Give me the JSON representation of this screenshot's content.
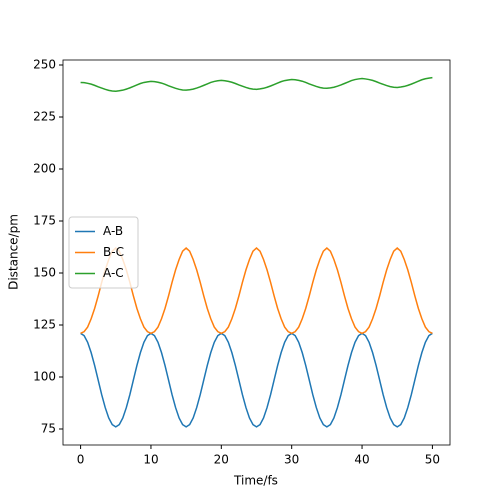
{
  "chart_data": {
    "type": "line",
    "xlabel": "Time/fs",
    "ylabel": "Distance/pm",
    "xlim": [
      -2.5,
      52.5
    ],
    "ylim": [
      67.3,
      252.4
    ],
    "xticks": [
      0,
      10,
      20,
      30,
      40,
      50
    ],
    "yticks": [
      75,
      100,
      125,
      150,
      175,
      200,
      225,
      250
    ],
    "legend": "center left",
    "x": [
      0,
      0.5,
      1,
      1.5,
      2,
      2.5,
      3,
      3.5,
      4,
      4.5,
      5,
      5.5,
      6,
      6.5,
      7,
      7.5,
      8,
      8.5,
      9,
      9.5,
      10,
      10.5,
      11,
      11.5,
      12,
      12.5,
      13,
      13.5,
      14,
      14.5,
      15,
      15.5,
      16,
      16.5,
      17,
      17.5,
      18,
      18.5,
      19,
      19.5,
      20,
      20.5,
      21,
      21.5,
      22,
      22.5,
      23,
      23.5,
      24,
      24.5,
      25,
      25.5,
      26,
      26.5,
      27,
      27.5,
      28,
      28.5,
      29,
      29.5,
      30,
      30.5,
      31,
      31.5,
      32,
      32.5,
      33,
      33.5,
      34,
      34.5,
      35,
      35.5,
      36,
      36.5,
      37,
      37.5,
      38,
      38.5,
      39,
      39.5,
      40,
      40.5,
      41,
      41.5,
      42,
      42.5,
      43,
      43.5,
      44,
      44.5,
      45,
      45.5,
      46,
      46.5,
      47,
      47.5,
      48,
      48.5,
      49,
      49.5,
      50
    ],
    "series": [
      {
        "name": "A-B",
        "color": "#1f77b4",
        "values": [
          121,
          119.9,
          116.7,
          111.7,
          105.5,
          98.5,
          91.5,
          85.3,
          80.3,
          77.1,
          76,
          77.1,
          80.3,
          85.3,
          91.5,
          98.5,
          105.5,
          111.7,
          116.7,
          119.9,
          121,
          119.9,
          116.7,
          111.7,
          105.5,
          98.5,
          91.5,
          85.3,
          80.3,
          77.1,
          76,
          77.1,
          80.3,
          85.3,
          91.5,
          98.5,
          105.5,
          111.7,
          116.7,
          119.9,
          121,
          119.9,
          116.7,
          111.7,
          105.5,
          98.5,
          91.5,
          85.3,
          80.3,
          77.1,
          76,
          77.1,
          80.3,
          85.3,
          91.5,
          98.5,
          105.5,
          111.7,
          116.7,
          119.9,
          121,
          119.9,
          116.7,
          111.7,
          105.5,
          98.5,
          91.5,
          85.3,
          80.3,
          77.1,
          76,
          77.1,
          80.3,
          85.3,
          91.5,
          98.5,
          105.5,
          111.7,
          116.7,
          119.9,
          121,
          119.9,
          116.7,
          111.7,
          105.5,
          98.5,
          91.5,
          85.3,
          80.3,
          77.1,
          76,
          77.1,
          80.3,
          85.3,
          91.5,
          98.5,
          105.5,
          111.7,
          116.7,
          119.9,
          121
        ]
      },
      {
        "name": "B-C",
        "color": "#ff7f0e",
        "values": [
          121,
          121.8,
          124,
          128,
          133,
          139,
          145.5,
          151.5,
          156.5,
          160.5,
          162,
          160.5,
          156.5,
          151.5,
          145.5,
          139,
          133,
          128,
          124,
          121.8,
          121,
          121.8,
          124,
          128,
          133,
          139,
          145.5,
          151.5,
          156.5,
          160.5,
          162,
          160.5,
          156.5,
          151.5,
          145.5,
          139,
          133,
          128,
          124,
          121.8,
          121,
          121.8,
          124,
          128,
          133,
          139,
          145.5,
          151.5,
          156.5,
          160.5,
          162,
          160.5,
          156.5,
          151.5,
          145.5,
          139,
          133,
          128,
          124,
          121.8,
          121,
          121.8,
          124,
          128,
          133,
          139,
          145.5,
          151.5,
          156.5,
          160.5,
          162,
          160.5,
          156.5,
          151.5,
          145.5,
          139,
          133,
          128,
          124,
          121.8,
          121,
          121.8,
          124,
          128,
          133,
          139,
          145.5,
          151.5,
          156.5,
          160.5,
          162,
          160.5,
          156.5,
          151.5,
          145.5,
          139,
          133,
          128,
          124,
          121.8,
          121
        ]
      },
      {
        "name": "A-C",
        "color": "#2ca02c",
        "values": [
          241.6,
          241.5,
          241.2,
          240.8,
          240.2,
          239.5,
          238.9,
          238.3,
          237.8,
          237.5,
          237.4,
          237.6,
          237.9,
          238.4,
          239.0,
          239.7,
          240.4,
          241.1,
          241.6,
          241.9,
          242.1,
          242.0,
          241.7,
          241.3,
          240.7,
          240.0,
          239.4,
          238.8,
          238.3,
          238.0,
          237.9,
          238.1,
          238.4,
          238.9,
          239.5,
          240.2,
          240.9,
          241.6,
          242.1,
          242.4,
          242.6,
          242.4,
          242.1,
          241.7,
          241.1,
          240.4,
          239.8,
          239.2,
          238.7,
          238.4,
          238.3,
          238.5,
          238.8,
          239.3,
          239.9,
          240.6,
          241.3,
          242.0,
          242.5,
          242.8,
          243.0,
          242.9,
          242.6,
          242.2,
          241.6,
          240.9,
          240.3,
          239.7,
          239.2,
          238.9,
          238.8,
          239.0,
          239.3,
          239.8,
          240.4,
          241.1,
          241.8,
          242.5,
          243.0,
          243.3,
          243.5,
          243.3,
          243.0,
          242.6,
          242.0,
          241.3,
          240.7,
          240.1,
          239.6,
          239.3,
          239.2,
          239.4,
          239.7,
          240.2,
          240.8,
          241.5,
          242.2,
          242.9,
          243.4,
          243.7,
          243.9
        ]
      }
    ]
  }
}
